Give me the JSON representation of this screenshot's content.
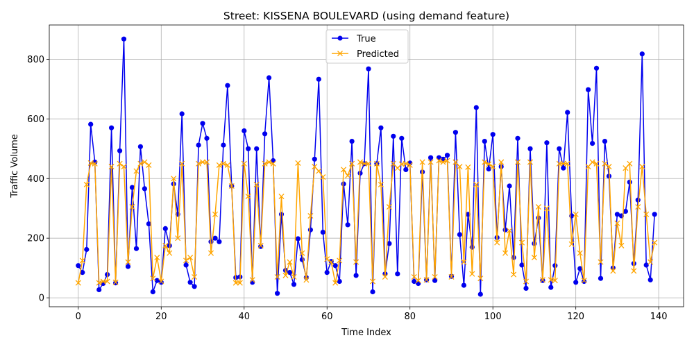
{
  "chart_data": {
    "type": "line",
    "title": "Street: KISSENA BOULEVARD (using demand feature)",
    "xlabel": "Time Index",
    "ylabel": "Traffic Volume",
    "xlim": [
      -7,
      146
    ],
    "ylim": [
      -30,
      915
    ],
    "xticks": [
      0,
      20,
      40,
      60,
      80,
      100,
      120,
      140
    ],
    "yticks": [
      0,
      200,
      400,
      600,
      800
    ],
    "grid": true,
    "legend_position": "top-center",
    "series": [
      {
        "name": "True",
        "color": "#0000ee",
        "marker": "circle",
        "values": [
          108,
          85,
          162,
          582,
          455,
          27,
          48,
          78,
          570,
          50,
          493,
          868,
          105,
          370,
          165,
          507,
          366,
          248,
          20,
          58,
          52,
          232,
          175,
          382,
          280,
          617,
          110,
          52,
          38,
          512,
          585,
          535,
          188,
          200,
          188,
          512,
          712,
          375,
          68,
          70,
          560,
          500,
          52,
          500,
          172,
          550,
          738,
          460,
          15,
          280,
          92,
          85,
          45,
          198,
          128,
          68,
          228,
          465,
          733,
          220,
          85,
          122,
          108,
          55,
          382,
          245,
          525,
          75,
          418,
          450,
          768,
          20,
          450,
          570,
          80,
          182,
          542,
          80,
          535,
          430,
          452,
          55,
          48,
          422,
          60,
          470,
          58,
          470,
          465,
          478,
          72,
          555,
          212,
          42,
          280,
          170,
          638,
          12,
          525,
          432,
          548,
          202,
          440,
          228,
          375,
          135,
          535,
          110,
          32,
          500,
          182,
          268,
          58,
          520,
          35,
          108,
          500,
          435,
          622,
          275,
          52,
          98,
          55,
          698,
          518,
          770,
          65,
          525,
          408,
          100,
          280,
          275,
          290,
          388,
          115,
          328,
          818,
          110,
          60,
          280
        ]
      },
      {
        "name": "Predicted",
        "color": "#ffa500",
        "marker": "x",
        "values": [
          50,
          125,
          380,
          452,
          450,
          50,
          55,
          55,
          440,
          52,
          450,
          440,
          120,
          305,
          425,
          450,
          455,
          445,
          65,
          135,
          55,
          175,
          150,
          400,
          200,
          450,
          125,
          135,
          70,
          450,
          455,
          455,
          150,
          280,
          445,
          450,
          445,
          375,
          50,
          50,
          450,
          340,
          60,
          380,
          175,
          450,
          455,
          450,
          70,
          340,
          75,
          120,
          70,
          452,
          150,
          60,
          275,
          440,
          425,
          405,
          130,
          120,
          50,
          125,
          430,
          410,
          450,
          120,
          455,
          450,
          450,
          55,
          450,
          380,
          70,
          305,
          450,
          435,
          448,
          450,
          445,
          70,
          58,
          455,
          60,
          455,
          70,
          460,
          455,
          460,
          70,
          455,
          440,
          120,
          438,
          80,
          380,
          65,
          455,
          448,
          440,
          185,
          455,
          150,
          225,
          78,
          455,
          185,
          55,
          455,
          135,
          305,
          60,
          300,
          60,
          58,
          450,
          450,
          450,
          180,
          280,
          150,
          58,
          440,
          455,
          450,
          120,
          450,
          440,
          90,
          250,
          175,
          435,
          450,
          90,
          305,
          440,
          280,
          120,
          185
        ]
      }
    ]
  }
}
